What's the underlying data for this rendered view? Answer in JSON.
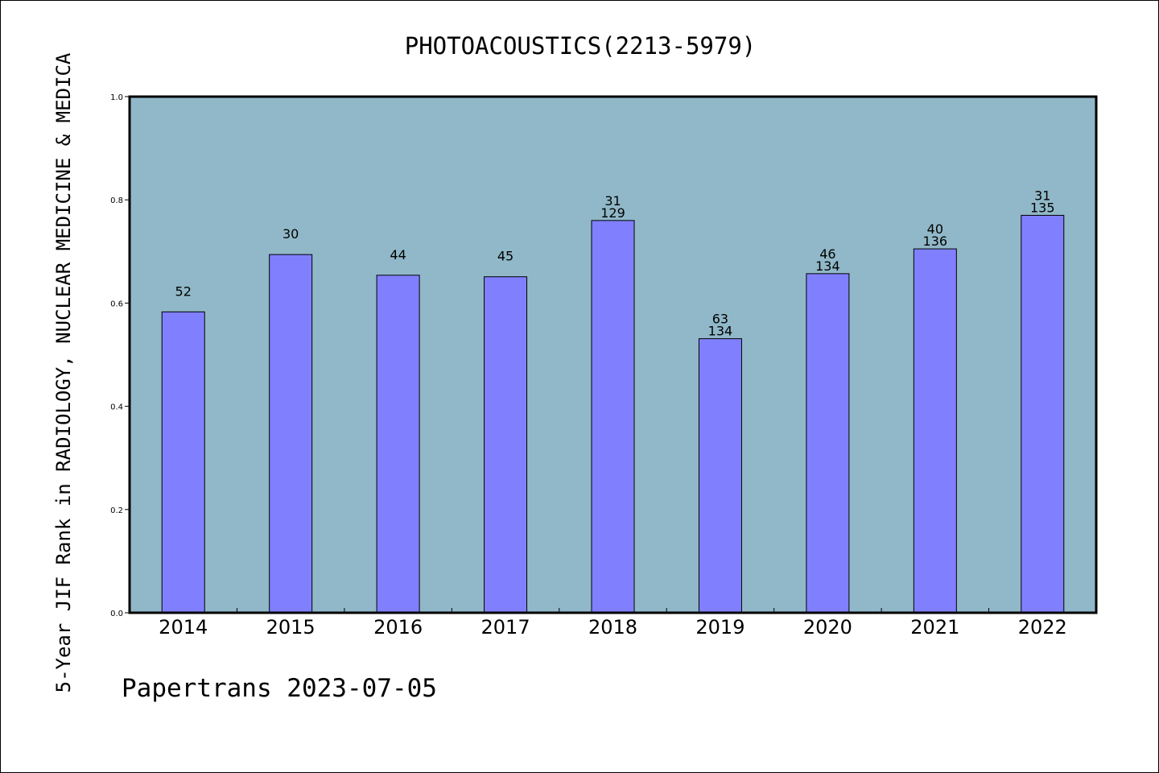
{
  "chart_data": {
    "type": "bar",
    "title": "PHOTOACOUSTICS(2213-5979)",
    "ylabel": "5-Year JIF Rank in RADIOLOGY, NUCLEAR MEDICINE & MEDICA",
    "xlabel": "",
    "ylim": [
      0,
      1.0
    ],
    "yticks": [
      "0.0",
      "0.2",
      "0.4",
      "0.6",
      "0.8",
      "1.0"
    ],
    "grid": false,
    "categories": [
      "2014",
      "2015",
      "2016",
      "2017",
      "2018",
      "2019",
      "2020",
      "2021",
      "2022"
    ],
    "values": [
      0.583,
      0.694,
      0.654,
      0.651,
      0.76,
      0.531,
      0.657,
      0.705,
      0.77
    ],
    "labels_rank": [
      "52",
      "30",
      "44",
      "45",
      "31",
      "63",
      "46",
      "40",
      "31"
    ],
    "labels_total": [
      "",
      "",
      "",
      "",
      "129",
      "134",
      "134",
      "136",
      "135"
    ],
    "footer": "Papertrans 2023-07-05",
    "colors": {
      "plot_background": "#90b8c8",
      "bar_fill": "#8080ff",
      "bar_stroke": "#000000",
      "axis": "#000000"
    }
  }
}
